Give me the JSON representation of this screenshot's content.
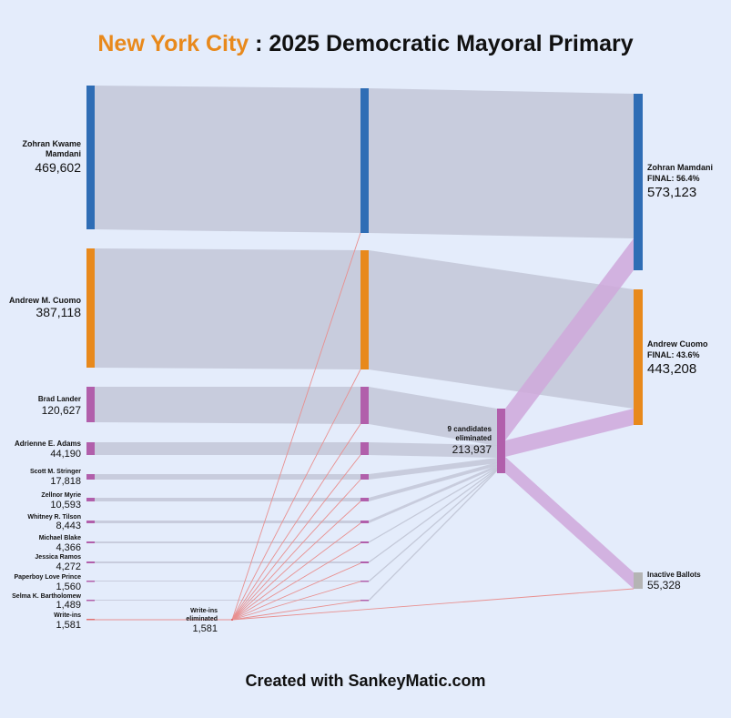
{
  "title": {
    "city": "New York City",
    "separator": " : ",
    "text": "2025 Democratic Mayoral Primary"
  },
  "footer": "Created with SankeyMatic.com",
  "colors": {
    "background": "#e4ecfb",
    "mamdani": "#2f6db5",
    "cuomo": "#e8891c",
    "others": "#b15fab",
    "inactive": "#b4b4b4",
    "writeins": "#e07070",
    "flow": "#c4c9d9",
    "transfer": "#cfa8db"
  },
  "candidates": [
    {
      "name": "Zohran Kwame Mamdani",
      "votes": "469,602"
    },
    {
      "name": "Andrew M. Cuomo",
      "votes": "387,118"
    },
    {
      "name": "Brad Lander",
      "votes": "120,627"
    },
    {
      "name": "Adrienne E. Adams",
      "votes": "44,190"
    },
    {
      "name": "Scott M. Stringer",
      "votes": "17,818"
    },
    {
      "name": "Zellnor Myrie",
      "votes": "10,593"
    },
    {
      "name": "Whitney R. Tilson",
      "votes": "8,443"
    },
    {
      "name": "Michael Blake",
      "votes": "4,366"
    },
    {
      "name": "Jessica Ramos",
      "votes": "4,272"
    },
    {
      "name": "Paperboy Love Prince",
      "votes": "1,560"
    },
    {
      "name": "Selma K. Bartholomew",
      "votes": "1,489"
    },
    {
      "name": "Write-ins",
      "votes": "1,581"
    }
  ],
  "writeins_eliminated": {
    "label": "Write-ins eliminated",
    "votes": "1,581"
  },
  "nine_eliminated": {
    "label": "9 candidates eliminated",
    "votes": "213,937"
  },
  "finals": [
    {
      "name": "Zohran Mamdani",
      "final": "FINAL: 56.4%",
      "votes": "573,123"
    },
    {
      "name": "Andrew Cuomo",
      "final": "FINAL: 43.6%",
      "votes": "443,208"
    },
    {
      "name": "Inactive Ballots",
      "votes": "55,328"
    }
  ]
}
